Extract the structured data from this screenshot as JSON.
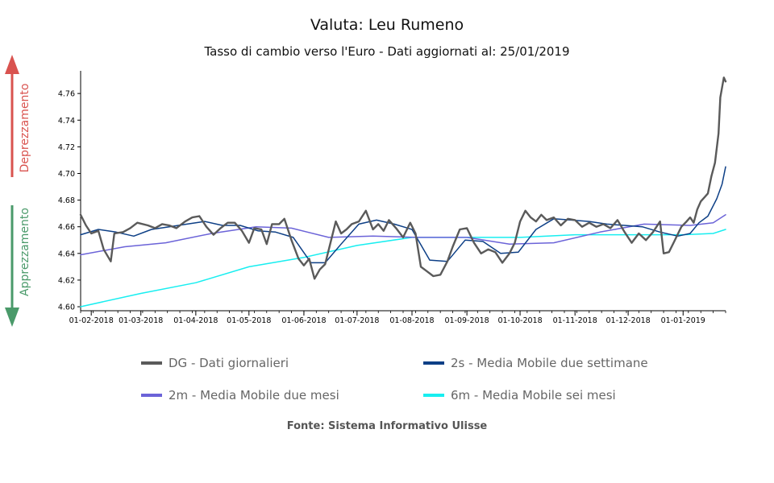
{
  "header": {
    "title": "Valuta: Leu Rumeno",
    "subtitle": "Tasso di cambio verso l'Euro - Dati aggiornati al: 25/01/2019"
  },
  "side": {
    "up_label": "Deprezzamento",
    "down_label": "Apprezzamento",
    "up_color": "#d9534f",
    "down_color": "#4a9a6a"
  },
  "source": "Fonte: Sistema Informativo Ulisse",
  "chart_data": {
    "type": "line",
    "xlabel": "",
    "ylabel": "",
    "ylim": [
      4.597,
      4.777
    ],
    "yticks": [
      "4.60",
      "4.62",
      "4.64",
      "4.66",
      "4.68",
      "4.70",
      "4.72",
      "4.74",
      "4.76"
    ],
    "xticks": [
      "01-02-2018",
      "01-03-2018",
      "01-04-2018",
      "01-05-2018",
      "01-06-2018",
      "01-07-2018",
      "01-08-2018",
      "01-09-2018",
      "01-10-2018",
      "01-11-2018",
      "01-12-2018",
      "01-01-2019"
    ],
    "xrange": [
      "2018-01-26",
      "2019-01-25"
    ],
    "grid": false,
    "legend_position": "bottom",
    "series": [
      {
        "key": "dg",
        "name": "DG - Dati giornalieri",
        "color": "#5a5a5a",
        "points": [
          [
            "2018-01-26",
            4.669
          ],
          [
            "2018-01-29",
            4.661
          ],
          [
            "2018-02-01",
            4.655
          ],
          [
            "2018-02-05",
            4.657
          ],
          [
            "2018-02-08",
            4.643
          ],
          [
            "2018-02-12",
            4.634
          ],
          [
            "2018-02-14",
            4.655
          ],
          [
            "2018-02-19",
            4.656
          ],
          [
            "2018-02-23",
            4.659
          ],
          [
            "2018-02-27",
            4.663
          ],
          [
            "2018-03-05",
            4.661
          ],
          [
            "2018-03-09",
            4.659
          ],
          [
            "2018-03-13",
            4.662
          ],
          [
            "2018-03-17",
            4.661
          ],
          [
            "2018-03-21",
            4.659
          ],
          [
            "2018-03-26",
            4.664
          ],
          [
            "2018-03-30",
            4.667
          ],
          [
            "2018-04-03",
            4.668
          ],
          [
            "2018-04-07",
            4.66
          ],
          [
            "2018-04-11",
            4.654
          ],
          [
            "2018-04-15",
            4.659
          ],
          [
            "2018-04-19",
            4.663
          ],
          [
            "2018-04-23",
            4.663
          ],
          [
            "2018-04-27",
            4.657
          ],
          [
            "2018-05-01",
            4.648
          ],
          [
            "2018-05-04",
            4.659
          ],
          [
            "2018-05-08",
            4.658
          ],
          [
            "2018-05-11",
            4.647
          ],
          [
            "2018-05-14",
            4.662
          ],
          [
            "2018-05-18",
            4.662
          ],
          [
            "2018-05-21",
            4.666
          ],
          [
            "2018-05-25",
            4.65
          ],
          [
            "2018-05-29",
            4.636
          ],
          [
            "2018-06-01",
            4.631
          ],
          [
            "2018-06-04",
            4.636
          ],
          [
            "2018-06-07",
            4.621
          ],
          [
            "2018-06-10",
            4.628
          ],
          [
            "2018-06-13",
            4.632
          ],
          [
            "2018-06-16",
            4.648
          ],
          [
            "2018-06-19",
            4.664
          ],
          [
            "2018-06-22",
            4.655
          ],
          [
            "2018-06-25",
            4.658
          ],
          [
            "2018-06-28",
            4.662
          ],
          [
            "2018-07-02",
            4.664
          ],
          [
            "2018-07-06",
            4.672
          ],
          [
            "2018-07-10",
            4.658
          ],
          [
            "2018-07-13",
            4.662
          ],
          [
            "2018-07-16",
            4.657
          ],
          [
            "2018-07-19",
            4.665
          ],
          [
            "2018-07-23",
            4.659
          ],
          [
            "2018-07-27",
            4.652
          ],
          [
            "2018-07-31",
            4.663
          ],
          [
            "2018-08-03",
            4.655
          ],
          [
            "2018-08-06",
            4.63
          ],
          [
            "2018-08-09",
            4.627
          ],
          [
            "2018-08-13",
            4.623
          ],
          [
            "2018-08-17",
            4.624
          ],
          [
            "2018-08-21",
            4.634
          ],
          [
            "2018-08-24",
            4.645
          ],
          [
            "2018-08-28",
            4.658
          ],
          [
            "2018-09-01",
            4.659
          ],
          [
            "2018-09-05",
            4.648
          ],
          [
            "2018-09-09",
            4.64
          ],
          [
            "2018-09-13",
            4.643
          ],
          [
            "2018-09-17",
            4.641
          ],
          [
            "2018-09-21",
            4.633
          ],
          [
            "2018-09-25",
            4.64
          ],
          [
            "2018-09-28",
            4.648
          ],
          [
            "2018-10-01",
            4.664
          ],
          [
            "2018-10-04",
            4.672
          ],
          [
            "2018-10-07",
            4.667
          ],
          [
            "2018-10-10",
            4.664
          ],
          [
            "2018-10-13",
            4.669
          ],
          [
            "2018-10-16",
            4.665
          ],
          [
            "2018-10-20",
            4.667
          ],
          [
            "2018-10-24",
            4.661
          ],
          [
            "2018-10-28",
            4.666
          ],
          [
            "2018-11-01",
            4.665
          ],
          [
            "2018-11-05",
            4.66
          ],
          [
            "2018-11-09",
            4.663
          ],
          [
            "2018-11-13",
            4.66
          ],
          [
            "2018-11-17",
            4.662
          ],
          [
            "2018-11-21",
            4.659
          ],
          [
            "2018-11-25",
            4.665
          ],
          [
            "2018-11-29",
            4.656
          ],
          [
            "2018-12-03",
            4.648
          ],
          [
            "2018-12-07",
            4.655
          ],
          [
            "2018-12-11",
            4.65
          ],
          [
            "2018-12-15",
            4.656
          ],
          [
            "2018-12-19",
            4.664
          ],
          [
            "2018-12-21",
            4.64
          ],
          [
            "2018-12-24",
            4.641
          ],
          [
            "2018-12-27",
            4.649
          ],
          [
            "2018-12-31",
            4.66
          ],
          [
            "2019-01-03",
            4.664
          ],
          [
            "2019-01-05",
            4.667
          ],
          [
            "2019-01-07",
            4.663
          ],
          [
            "2019-01-09",
            4.673
          ],
          [
            "2019-01-11",
            4.679
          ],
          [
            "2019-01-13",
            4.682
          ],
          [
            "2019-01-15",
            4.685
          ],
          [
            "2019-01-17",
            4.698
          ],
          [
            "2019-01-19",
            4.708
          ],
          [
            "2019-01-21",
            4.73
          ],
          [
            "2019-01-22",
            4.757
          ],
          [
            "2019-01-24",
            4.772
          ],
          [
            "2019-01-25",
            4.769
          ]
        ]
      },
      {
        "key": "ma2s",
        "name": "2s - Media Mobile due settimane",
        "color": "#0d3f86",
        "points": [
          [
            "2018-01-26",
            4.654
          ],
          [
            "2018-02-05",
            4.658
          ],
          [
            "2018-02-15",
            4.656
          ],
          [
            "2018-02-25",
            4.653
          ],
          [
            "2018-03-07",
            4.658
          ],
          [
            "2018-03-17",
            4.66
          ],
          [
            "2018-03-27",
            4.662
          ],
          [
            "2018-04-06",
            4.664
          ],
          [
            "2018-04-16",
            4.661
          ],
          [
            "2018-04-26",
            4.661
          ],
          [
            "2018-05-06",
            4.657
          ],
          [
            "2018-05-16",
            4.656
          ],
          [
            "2018-05-26",
            4.652
          ],
          [
            "2018-06-05",
            4.633
          ],
          [
            "2018-06-13",
            4.633
          ],
          [
            "2018-06-22",
            4.647
          ],
          [
            "2018-07-02",
            4.662
          ],
          [
            "2018-07-12",
            4.665
          ],
          [
            "2018-07-22",
            4.662
          ],
          [
            "2018-08-01",
            4.658
          ],
          [
            "2018-08-11",
            4.635
          ],
          [
            "2018-08-21",
            4.634
          ],
          [
            "2018-08-31",
            4.65
          ],
          [
            "2018-09-10",
            4.649
          ],
          [
            "2018-09-20",
            4.64
          ],
          [
            "2018-09-30",
            4.641
          ],
          [
            "2018-10-10",
            4.658
          ],
          [
            "2018-10-20",
            4.666
          ],
          [
            "2018-10-30",
            4.665
          ],
          [
            "2018-11-09",
            4.664
          ],
          [
            "2018-11-19",
            4.662
          ],
          [
            "2018-11-29",
            4.661
          ],
          [
            "2018-12-09",
            4.66
          ],
          [
            "2018-12-19",
            4.656
          ],
          [
            "2018-12-29",
            4.653
          ],
          [
            "2019-01-05",
            4.655
          ],
          [
            "2019-01-10",
            4.663
          ],
          [
            "2019-01-15",
            4.668
          ],
          [
            "2019-01-20",
            4.681
          ],
          [
            "2019-01-23",
            4.692
          ],
          [
            "2019-01-25",
            4.705
          ]
        ]
      },
      {
        "key": "ma2m",
        "name": "2m - Media Mobile due mesi",
        "color": "#6b63d8",
        "points": [
          [
            "2018-01-26",
            4.639
          ],
          [
            "2018-02-20",
            4.645
          ],
          [
            "2018-03-15",
            4.648
          ],
          [
            "2018-04-10",
            4.655
          ],
          [
            "2018-05-05",
            4.66
          ],
          [
            "2018-05-25",
            4.659
          ],
          [
            "2018-06-15",
            4.652
          ],
          [
            "2018-07-10",
            4.653
          ],
          [
            "2018-08-05",
            4.652
          ],
          [
            "2018-09-01",
            4.652
          ],
          [
            "2018-09-25",
            4.647
          ],
          [
            "2018-10-20",
            4.648
          ],
          [
            "2018-11-15",
            4.656
          ],
          [
            "2018-12-10",
            4.662
          ],
          [
            "2019-01-05",
            4.661
          ],
          [
            "2019-01-18",
            4.663
          ],
          [
            "2019-01-25",
            4.669
          ]
        ]
      },
      {
        "key": "ma6m",
        "name": "6m - Media Mobile sei mesi",
        "color": "#18eef0",
        "points": [
          [
            "2018-01-26",
            4.6
          ],
          [
            "2018-03-01",
            4.61
          ],
          [
            "2018-04-01",
            4.618
          ],
          [
            "2018-05-01",
            4.63
          ],
          [
            "2018-06-01",
            4.637
          ],
          [
            "2018-07-01",
            4.646
          ],
          [
            "2018-08-01",
            4.652
          ],
          [
            "2018-09-01",
            4.652
          ],
          [
            "2018-10-01",
            4.652
          ],
          [
            "2018-11-01",
            4.654
          ],
          [
            "2018-12-01",
            4.654
          ],
          [
            "2019-01-01",
            4.654
          ],
          [
            "2019-01-18",
            4.655
          ],
          [
            "2019-01-25",
            4.658
          ]
        ]
      }
    ]
  }
}
